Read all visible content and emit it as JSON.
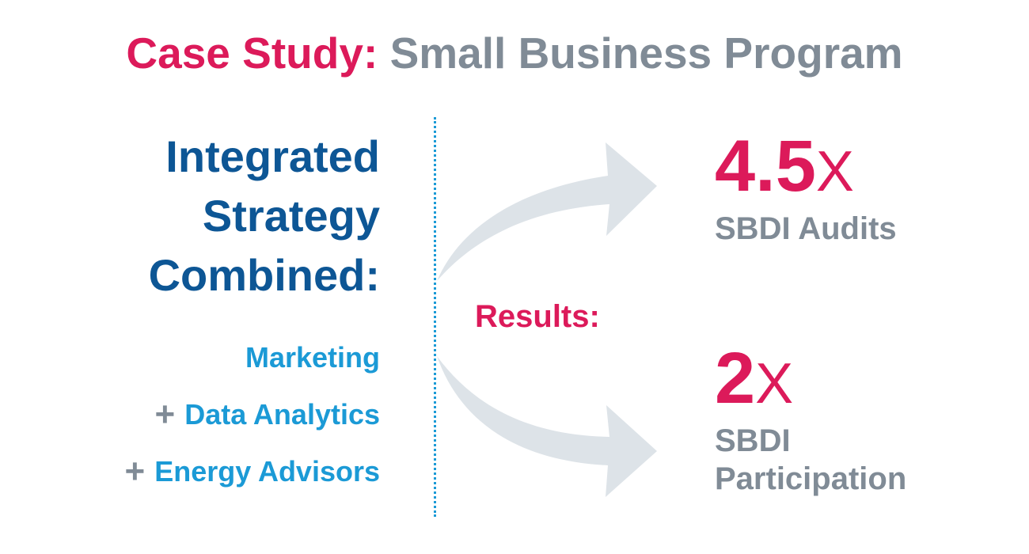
{
  "title": {
    "accent": "Case Study:",
    "rest": "Small Business Program"
  },
  "strategy": {
    "lines": [
      "Integrated",
      "Strategy",
      "Combined:"
    ]
  },
  "components": [
    {
      "label": "Marketing",
      "prefix": ""
    },
    {
      "label": "Data Analytics",
      "prefix": "+"
    },
    {
      "label": "Energy Advisors",
      "prefix": "+"
    }
  ],
  "results_label": "Results:",
  "metrics": [
    {
      "value": "4.5",
      "suffix": "X",
      "label": "SBDI Audits"
    },
    {
      "value": "2",
      "suffix": "X",
      "label": "SBDI Participation"
    }
  ],
  "colors": {
    "accent": "#dc1a5a",
    "gray": "#808b96",
    "navy": "#0d5695",
    "light_blue": "#1b9ad6",
    "arrow": "#dde3e8"
  }
}
